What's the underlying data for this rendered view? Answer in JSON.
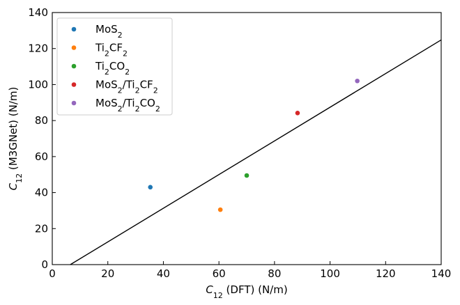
{
  "chart_data": {
    "type": "scatter",
    "xlabel": "C_12 (DFT) (N/m)",
    "ylabel": "C_12 (M3GNet) (N/m)",
    "xlim": [
      0,
      140
    ],
    "ylim": [
      0,
      140
    ],
    "x_ticks": [
      "0",
      "20",
      "40",
      "60",
      "80",
      "100",
      "120",
      "140"
    ],
    "y_ticks": [
      "0",
      "20",
      "40",
      "60",
      "80",
      "100",
      "120",
      "140"
    ],
    "grid": false,
    "legend_position": "top-left",
    "series": [
      {
        "name": "MoS_2",
        "color": "#1f77b4",
        "x": [
          35.3
        ],
        "y": [
          43.0
        ]
      },
      {
        "name": "Ti_2CF_2",
        "color": "#ff7f0e",
        "x": [
          60.5
        ],
        "y": [
          30.5
        ]
      },
      {
        "name": "Ti_2CO_2",
        "color": "#2ca02c",
        "x": [
          70.0
        ],
        "y": [
          49.5
        ]
      },
      {
        "name": "MoS_2/Ti_2CF_2",
        "color": "#d62728",
        "x": [
          88.3
        ],
        "y": [
          84.2
        ]
      },
      {
        "name": "MoS_2/Ti_2CO_2",
        "color": "#9467bd",
        "x": [
          109.8
        ],
        "y": [
          102.0
        ]
      }
    ],
    "fit_line": {
      "color": "#000000",
      "x": [
        6.5,
        140
      ],
      "y": [
        0,
        124.8
      ]
    }
  }
}
